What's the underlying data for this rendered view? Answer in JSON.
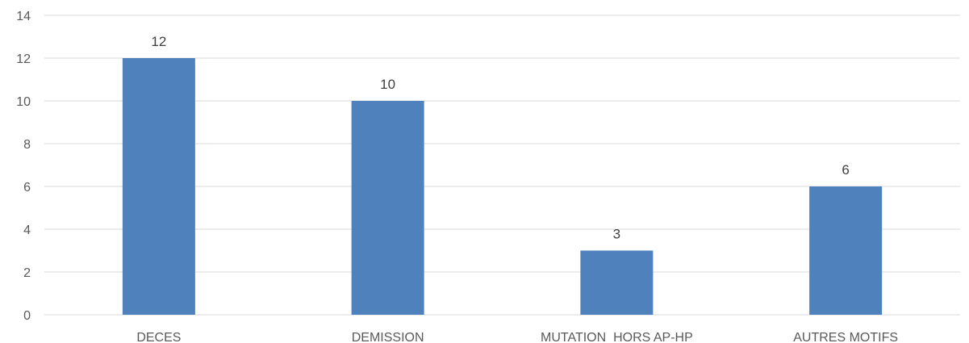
{
  "chart_data": {
    "type": "bar",
    "categories": [
      "DECES",
      "DEMISSION",
      "MUTATION  HORS AP-HP",
      "AUTRES MOTIFS"
    ],
    "values": [
      12,
      10,
      3,
      6
    ],
    "title": "",
    "xlabel": "",
    "ylabel": "",
    "ylim": [
      0,
      14
    ],
    "yticks": [
      0,
      2,
      4,
      6,
      8,
      10,
      12,
      14
    ],
    "grid": true,
    "data_labels": true,
    "legend": "none",
    "colors": {
      "bar": "#4f81bd",
      "grid": "#d9d9d9",
      "text": "#595959"
    }
  }
}
